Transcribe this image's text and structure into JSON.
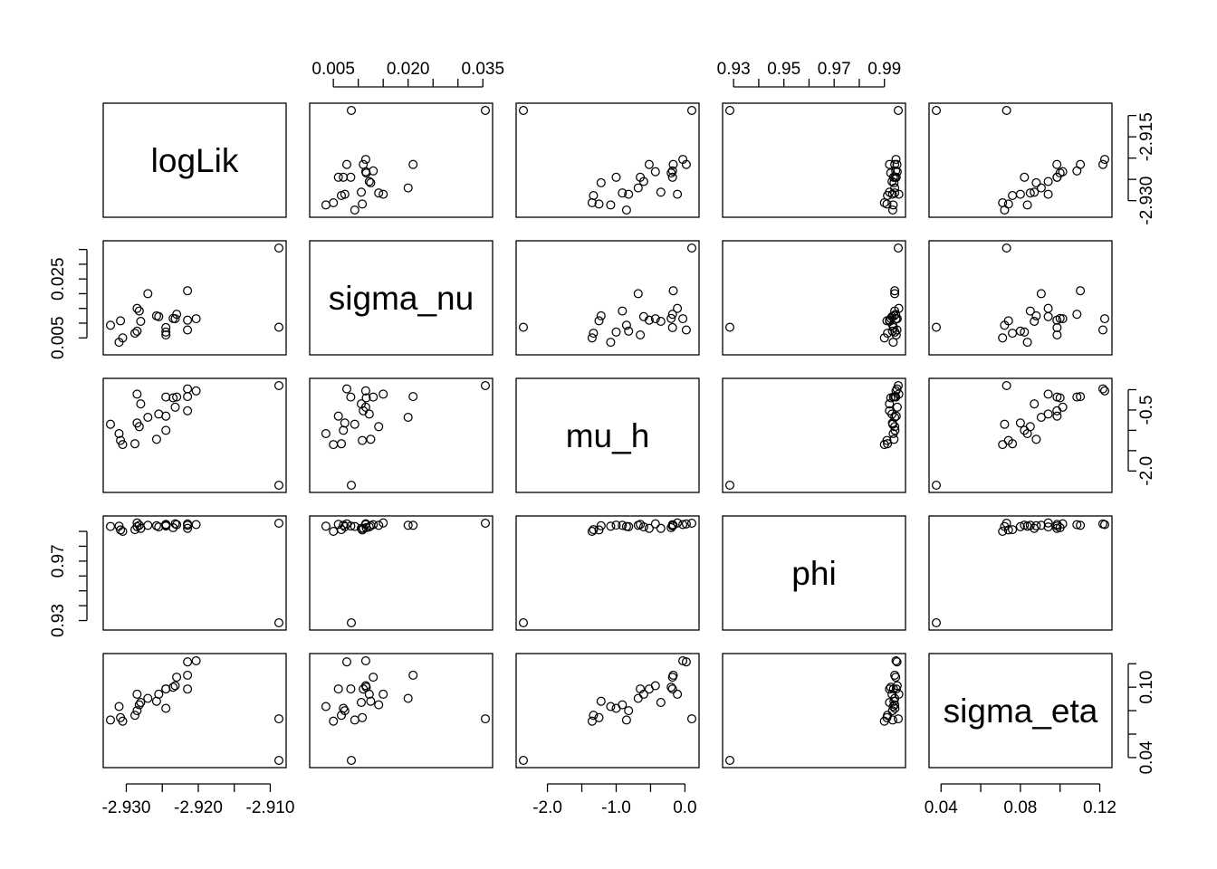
{
  "chart_data": {
    "type": "scatter",
    "variables": [
      "logLik",
      "sigma_nu",
      "mu_h",
      "phi",
      "sigma_eta"
    ],
    "axes": {
      "logLik": {
        "range": [
          -2.9322,
          -2.9088
        ],
        "ticks": [
          -2.93,
          -2.925,
          -2.92,
          -2.915,
          -2.91
        ],
        "tick_labels": {
          "top": [],
          "bottom": [
            "-2.930",
            "-2.920",
            "-2.910"
          ],
          "right": [
            "-2.915",
            "-2.930"
          ],
          "left": []
        }
      },
      "sigma_nu": {
        "range": [
          0.0017,
          0.0355
        ],
        "ticks": [
          0.005,
          0.01,
          0.015,
          0.02,
          0.025,
          0.03,
          0.035
        ],
        "tick_labels": {
          "top": [
            "0.005",
            "0.020",
            "0.035"
          ],
          "bottom": [],
          "right": [],
          "left": [
            "0.005",
            "0.025"
          ]
        }
      },
      "mu_h": {
        "range": [
          -2.35,
          0.1
        ],
        "ticks": [
          -2.0,
          -1.5,
          -1.0,
          -0.5,
          0.0
        ],
        "tick_labels": {
          "top": [],
          "bottom": [
            "-2.0",
            "-1.0",
            "0.0"
          ],
          "right": [
            "-0.5",
            "-2.0"
          ],
          "left": []
        }
      },
      "phi": {
        "range": [
          0.9285,
          0.9955
        ],
        "ticks": [
          0.93,
          0.94,
          0.95,
          0.96,
          0.97,
          0.98,
          0.99
        ],
        "tick_labels": {
          "top": [
            "0.93",
            "0.95",
            "0.97",
            "0.99"
          ],
          "bottom": [],
          "right": [],
          "left": [
            "0.93",
            "0.97"
          ]
        }
      },
      "sigma_eta": {
        "range": [
          0.0376,
          0.1225
        ],
        "ticks": [
          0.04,
          0.06,
          0.08,
          0.1,
          0.12
        ],
        "tick_labels": {
          "top": [],
          "bottom": [
            "0.04",
            "0.08",
            "0.12"
          ],
          "right": [
            "0.04",
            "0.10"
          ],
          "left": []
        }
      }
    },
    "points": [
      {
        "logLik": -2.9088,
        "sigma_nu": 0.0355,
        "mu_h": 0.1,
        "phi": 0.9955,
        "sigma_eta": 0.073
      },
      {
        "logLik": -2.9088,
        "sigma_nu": 0.0086,
        "mu_h": -2.35,
        "phi": 0.9285,
        "sigma_eta": 0.0376
      },
      {
        "logLik": -2.9203,
        "sigma_nu": 0.0115,
        "mu_h": -0.03,
        "phi": 0.9946,
        "sigma_eta": 0.1225
      },
      {
        "logLik": -2.9215,
        "sigma_nu": 0.0077,
        "mu_h": 0.02,
        "phi": 0.995,
        "sigma_eta": 0.1216
      },
      {
        "logLik": -2.9215,
        "sigma_nu": 0.021,
        "mu_h": -0.17,
        "phi": 0.9941,
        "sigma_eta": 0.1102
      },
      {
        "logLik": -2.923,
        "sigma_nu": 0.013,
        "mu_h": -0.18,
        "phi": 0.9945,
        "sigma_eta": 0.1085
      },
      {
        "logLik": -2.9232,
        "sigma_nu": 0.0115,
        "mu_h": -0.43,
        "phi": 0.9951,
        "sigma_eta": 0.1013
      },
      {
        "logLik": -2.9235,
        "sigma_nu": 0.0116,
        "mu_h": -0.2,
        "phi": 0.9925,
        "sigma_eta": 0.1
      },
      {
        "logLik": -2.9245,
        "sigma_nu": 0.0085,
        "mu_h": -0.18,
        "phi": 0.9936,
        "sigma_eta": 0.0985
      },
      {
        "logLik": -2.9245,
        "sigma_nu": 0.006,
        "mu_h": -0.65,
        "phi": 0.9947,
        "sigma_eta": 0.0985
      },
      {
        "logLik": -2.9215,
        "sigma_nu": 0.011,
        "mu_h": -0.52,
        "phi": 0.992,
        "sigma_eta": 0.0984
      },
      {
        "logLik": -2.9255,
        "sigma_nu": 0.0122,
        "mu_h": -0.6,
        "phi": 0.993,
        "sigma_eta": 0.094
      },
      {
        "logLik": -2.9285,
        "sigma_nu": 0.015,
        "mu_h": -0.11,
        "phi": 0.9957,
        "sigma_eta": 0.094
      },
      {
        "logLik": -2.927,
        "sigma_nu": 0.02,
        "mu_h": -0.68,
        "phi": 0.9941,
        "sigma_eta": 0.0905
      },
      {
        "logLik": -2.9258,
        "sigma_nu": 0.0125,
        "mu_h": -1.22,
        "phi": 0.9938,
        "sigma_eta": 0.088
      },
      {
        "logLik": -2.928,
        "sigma_nu": 0.0106,
        "mu_h": -0.35,
        "phi": 0.992,
        "sigma_eta": 0.087
      },
      {
        "logLik": -2.9282,
        "sigma_nu": 0.0141,
        "mu_h": -0.91,
        "phi": 0.9941,
        "sigma_eta": 0.085
      },
      {
        "logLik": -2.931,
        "sigma_nu": 0.0035,
        "mu_h": -1.08,
        "phi": 0.9935,
        "sigma_eta": 0.0835
      },
      {
        "logLik": -2.9245,
        "sigma_nu": 0.007,
        "mu_h": -1.0,
        "phi": 0.9942,
        "sigma_eta": 0.082
      },
      {
        "logLik": -2.9285,
        "sigma_nu": 0.0073,
        "mu_h": -0.82,
        "phi": 0.9932,
        "sigma_eta": 0.08
      },
      {
        "logLik": -2.9288,
        "sigma_nu": 0.0066,
        "mu_h": -1.33,
        "phi": 0.9912,
        "sigma_eta": 0.076
      },
      {
        "logLik": -2.9308,
        "sigma_nu": 0.0108,
        "mu_h": -1.25,
        "phi": 0.991,
        "sigma_eta": 0.074
      },
      {
        "logLik": -2.9322,
        "sigma_nu": 0.0093,
        "mu_h": -0.85,
        "phi": 0.9933,
        "sigma_eta": 0.072
      },
      {
        "logLik": -2.9305,
        "sigma_nu": 0.005,
        "mu_h": -1.35,
        "phi": 0.99,
        "sigma_eta": 0.071
      }
    ]
  }
}
